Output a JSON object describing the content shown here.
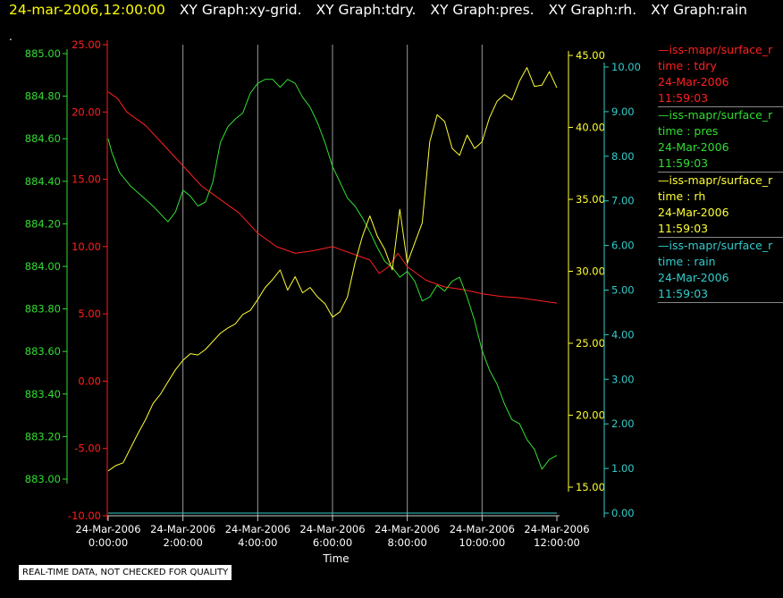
{
  "title": {
    "time": "24-mar-2006,12:00:00",
    "segments": [
      "XY Graph:xy-grid.",
      "XY Graph:tdry.",
      "XY Graph:pres.",
      "XY Graph:rh.",
      "XY Graph:rain"
    ]
  },
  "marker": ".",
  "notice": "REAL-TIME DATA, NOT CHECKED FOR QUALITY",
  "legend": [
    {
      "name": "—iss-mapr/surface_r",
      "field": "time : tdry",
      "date": "24-Mar-2006",
      "time": "11:59:03",
      "color": "#ff2020"
    },
    {
      "name": "—iss-mapr/surface_r",
      "field": "time : pres",
      "date": "24-Mar-2006",
      "time": "11:59:03",
      "color": "#33dd33"
    },
    {
      "name": "—iss-mapr/surface_r",
      "field": "time : rh",
      "date": "24-Mar-2006",
      "time": "11:59:03",
      "color": "#ffff33"
    },
    {
      "name": "—iss-mapr/surface_r",
      "field": "time : rain",
      "date": "24-Mar-2006",
      "time": "11:59:03",
      "color": "#33cccc"
    }
  ],
  "chart_data": {
    "type": "line",
    "xlabel": "Time",
    "x_ticks": [
      {
        "date": "24-Mar-2006",
        "time": "0:00:00"
      },
      {
        "date": "24-Mar-2006",
        "time": "2:00:00"
      },
      {
        "date": "24-Mar-2006",
        "time": "4:00:00"
      },
      {
        "date": "24-Mar-2006",
        "time": "6:00:00"
      },
      {
        "date": "24-Mar-2006",
        "time": "8:00:00"
      },
      {
        "date": "24-Mar-2006",
        "time": "10:00:00"
      },
      {
        "date": "24-Mar-2006",
        "time": "12:00:00"
      }
    ],
    "xlim": [
      0,
      12
    ],
    "grid": "vertical",
    "axes": {
      "tdry": {
        "color": "#ff2020",
        "ylim": [
          -10,
          25
        ],
        "ticks": [
          "25.00",
          "20.00",
          "15.00",
          "10.00",
          "5.00",
          "0.00",
          "-5.00",
          "-10.00"
        ]
      },
      "pres": {
        "color": "#33dd33",
        "ylim": [
          882.9,
          885.05
        ],
        "ticks": [
          "885.00",
          "884.80",
          "884.60",
          "884.40",
          "884.20",
          "884.00",
          "883.80",
          "883.60",
          "883.40",
          "883.20",
          "883.00"
        ]
      },
      "rh": {
        "color": "#ffff33",
        "ylim": [
          13.4,
          45.4
        ],
        "ticks": [
          "45.00",
          "40.00",
          "35.00",
          "30.00",
          "25.00",
          "20.00",
          "15.00"
        ]
      },
      "rain": {
        "color": "#33cccc",
        "ylim": [
          0,
          10.3
        ],
        "ticks": [
          "10.00",
          "9.00",
          "8.00",
          "7.00",
          "6.00",
          "5.00",
          "4.00",
          "3.00",
          "2.00",
          "1.00",
          "0.00"
        ]
      }
    },
    "series": [
      {
        "key": "tdry",
        "color": "#ff2020",
        "x": [
          0,
          0.25,
          0.5,
          0.75,
          1,
          1.5,
          2,
          2.5,
          3,
          3.5,
          4,
          4.5,
          5,
          5.5,
          6,
          6.5,
          7,
          7.25,
          7.5,
          7.75,
          8,
          8.5,
          9,
          9.5,
          10,
          10.5,
          11,
          11.5,
          11.75,
          12
        ],
        "y": [
          21.5,
          21,
          20,
          19.5,
          19,
          17.5,
          16,
          14.5,
          13.5,
          12.5,
          11,
          10,
          9.5,
          9.7,
          10,
          9.5,
          9,
          8,
          8.5,
          9.5,
          8.5,
          7.5,
          7,
          6.8,
          6.5,
          6.3,
          6.2,
          6,
          5.9,
          5.8
        ]
      },
      {
        "key": "pres",
        "color": "#33dd33",
        "x": [
          0,
          0.1,
          0.3,
          0.6,
          0.9,
          1.2,
          1.5,
          1.6,
          1.8,
          2,
          2.2,
          2.4,
          2.6,
          2.8,
          3,
          3.2,
          3.4,
          3.6,
          3.8,
          4,
          4.2,
          4.4,
          4.6,
          4.8,
          5,
          5.2,
          5.4,
          5.6,
          5.8,
          6,
          6.2,
          6.4,
          6.6,
          6.8,
          7,
          7.2,
          7.4,
          7.6,
          7.8,
          8,
          8.2,
          8.4,
          8.6,
          8.8,
          9,
          9.2,
          9.4,
          9.6,
          9.8,
          10,
          10.2,
          10.4,
          10.6,
          10.8,
          11,
          11.2,
          11.4,
          11.6,
          11.8,
          12
        ],
        "y": [
          884.62,
          884.55,
          884.45,
          884.38,
          884.33,
          884.28,
          884.22,
          884.2,
          884.25,
          884.36,
          884.33,
          884.28,
          884.3,
          884.4,
          884.6,
          884.68,
          884.72,
          884.75,
          884.85,
          884.9,
          884.92,
          884.92,
          884.88,
          884.92,
          884.9,
          884.83,
          884.78,
          884.7,
          884.6,
          884.48,
          884.4,
          884.32,
          884.28,
          884.22,
          884.15,
          884.07,
          884,
          883.97,
          883.92,
          883.95,
          883.9,
          883.8,
          883.82,
          883.88,
          883.85,
          883.9,
          883.92,
          883.82,
          883.7,
          883.55,
          883.45,
          883.38,
          883.28,
          883.2,
          883.18,
          883.1,
          883.05,
          882.95,
          883.0,
          883.02
        ]
      },
      {
        "key": "rh",
        "color": "#ffff33",
        "x": [
          0,
          0.2,
          0.4,
          0.6,
          0.8,
          1,
          1.2,
          1.4,
          1.6,
          1.8,
          2,
          2.2,
          2.4,
          2.6,
          2.8,
          3,
          3.2,
          3.4,
          3.6,
          3.8,
          4,
          4.2,
          4.4,
          4.6,
          4.8,
          5,
          5.2,
          5.4,
          5.6,
          5.8,
          6,
          6.2,
          6.4,
          6.6,
          6.8,
          7,
          7.2,
          7.4,
          7.6,
          7.8,
          8,
          8.2,
          8.4,
          8.6,
          8.8,
          9,
          9.2,
          9.4,
          9.6,
          9.8,
          10,
          10.2,
          10.4,
          10.6,
          10.8,
          11,
          11.2,
          11.4,
          11.6,
          11.8,
          12
        ],
        "y": [
          14.6,
          15,
          15.2,
          16.3,
          17.4,
          18.4,
          19.6,
          20.3,
          21.2,
          22.1,
          22.8,
          23.3,
          23.2,
          23.6,
          24.2,
          24.8,
          25.2,
          25.5,
          26.2,
          26.5,
          27.3,
          28.2,
          28.8,
          29.5,
          28,
          29,
          27.8,
          28.2,
          27.5,
          27,
          26,
          26.4,
          27.5,
          30,
          32,
          33.5,
          32,
          31,
          29.5,
          34,
          30,
          31.5,
          33,
          39,
          41,
          40.5,
          38.5,
          38,
          39.5,
          38.5,
          39,
          40.8,
          42,
          42.5,
          42.1,
          43.5,
          44.5,
          43.1,
          43.2,
          44.2,
          43
        ]
      },
      {
        "key": "rain",
        "color": "#33cccc",
        "x": [
          0,
          12
        ],
        "y": [
          0,
          0
        ]
      }
    ]
  }
}
